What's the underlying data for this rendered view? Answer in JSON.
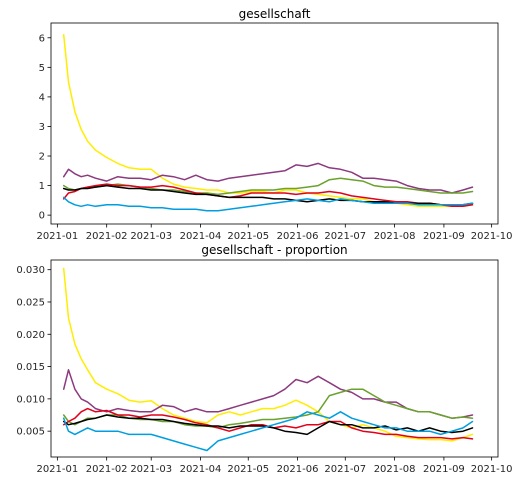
{
  "chart_data": [
    {
      "type": "line",
      "title": "gesellschaft",
      "xlabel": "",
      "ylabel": "",
      "xlim": [
        "2020-12-28",
        "2021-10-05"
      ],
      "ylim": [
        -0.3,
        6.5
      ],
      "xticks": [
        "2021-01",
        "2021-02",
        "2021-03",
        "2021-04",
        "2021-05",
        "2021-06",
        "2021-07",
        "2021-08",
        "2021-09",
        "2021-10"
      ],
      "yticks": [
        "0",
        "1",
        "2",
        "3",
        "4",
        "5",
        "6"
      ],
      "x": [
        "2021-01-05",
        "2021-01-08",
        "2021-01-12",
        "2021-01-16",
        "2021-01-20",
        "2021-01-25",
        "2021-02-01",
        "2021-02-08",
        "2021-02-15",
        "2021-02-22",
        "2021-03-01",
        "2021-03-08",
        "2021-03-15",
        "2021-03-22",
        "2021-03-29",
        "2021-04-05",
        "2021-04-12",
        "2021-04-19",
        "2021-04-26",
        "2021-05-03",
        "2021-05-10",
        "2021-05-17",
        "2021-05-24",
        "2021-05-31",
        "2021-06-07",
        "2021-06-14",
        "2021-06-21",
        "2021-06-28",
        "2021-07-05",
        "2021-07-12",
        "2021-07-19",
        "2021-07-26",
        "2021-08-02",
        "2021-08-09",
        "2021-08-16",
        "2021-08-23",
        "2021-08-30",
        "2021-09-06",
        "2021-09-13",
        "2021-09-19"
      ],
      "grid": false,
      "series": [
        {
          "color": "#ffed00",
          "values": [
            6.1,
            4.5,
            3.5,
            2.9,
            2.5,
            2.2,
            1.95,
            1.75,
            1.6,
            1.55,
            1.55,
            1.25,
            1.05,
            0.95,
            0.9,
            0.85,
            0.85,
            0.75,
            0.75,
            0.8,
            0.8,
            0.75,
            0.85,
            0.85,
            0.75,
            0.7,
            0.65,
            0.6,
            0.55,
            0.55,
            0.45,
            0.45,
            0.4,
            0.35,
            0.3,
            0.3,
            0.3,
            0.3,
            0.3,
            0.35
          ]
        },
        {
          "color": "#8c3a7e",
          "values": [
            1.3,
            1.55,
            1.4,
            1.3,
            1.35,
            1.25,
            1.15,
            1.3,
            1.25,
            1.25,
            1.2,
            1.35,
            1.3,
            1.2,
            1.35,
            1.2,
            1.15,
            1.25,
            1.3,
            1.35,
            1.4,
            1.45,
            1.5,
            1.7,
            1.65,
            1.75,
            1.6,
            1.55,
            1.45,
            1.25,
            1.25,
            1.2,
            1.15,
            1.0,
            0.9,
            0.85,
            0.85,
            0.75,
            0.85,
            0.95
          ]
        },
        {
          "color": "#6aa22d",
          "values": [
            1.0,
            0.9,
            0.85,
            0.9,
            0.95,
            0.95,
            1.0,
            1.05,
            1.0,
            0.95,
            0.9,
            0.85,
            0.85,
            0.8,
            0.75,
            0.75,
            0.7,
            0.75,
            0.8,
            0.85,
            0.85,
            0.85,
            0.9,
            0.9,
            0.95,
            1.0,
            1.2,
            1.25,
            1.2,
            1.15,
            1.0,
            0.95,
            0.95,
            0.9,
            0.85,
            0.8,
            0.75,
            0.75,
            0.75,
            0.8
          ]
        },
        {
          "color": "#e3001b",
          "values": [
            0.55,
            0.75,
            0.8,
            0.9,
            0.95,
            1.0,
            1.05,
            1.0,
            1.0,
            0.95,
            0.95,
            1.0,
            0.95,
            0.85,
            0.75,
            0.7,
            0.65,
            0.6,
            0.65,
            0.75,
            0.75,
            0.75,
            0.75,
            0.7,
            0.75,
            0.75,
            0.8,
            0.75,
            0.65,
            0.6,
            0.55,
            0.5,
            0.45,
            0.45,
            0.4,
            0.4,
            0.35,
            0.3,
            0.3,
            0.35
          ]
        },
        {
          "color": "#000000",
          "values": [
            0.9,
            0.85,
            0.85,
            0.9,
            0.9,
            0.95,
            1.0,
            0.95,
            0.9,
            0.9,
            0.85,
            0.85,
            0.8,
            0.75,
            0.7,
            0.7,
            0.65,
            0.6,
            0.6,
            0.6,
            0.6,
            0.55,
            0.55,
            0.5,
            0.45,
            0.5,
            0.55,
            0.5,
            0.5,
            0.45,
            0.45,
            0.45,
            0.4,
            0.4,
            0.4,
            0.4,
            0.35,
            0.35,
            0.35,
            0.4
          ]
        },
        {
          "color": "#009ee0",
          "values": [
            0.6,
            0.45,
            0.35,
            0.3,
            0.35,
            0.3,
            0.35,
            0.35,
            0.3,
            0.3,
            0.25,
            0.25,
            0.2,
            0.2,
            0.2,
            0.15,
            0.15,
            0.2,
            0.25,
            0.3,
            0.35,
            0.4,
            0.45,
            0.5,
            0.55,
            0.5,
            0.45,
            0.55,
            0.5,
            0.45,
            0.4,
            0.4,
            0.4,
            0.4,
            0.35,
            0.35,
            0.35,
            0.35,
            0.35,
            0.4
          ]
        }
      ]
    },
    {
      "type": "line",
      "title": "gesellschaft - proportion",
      "xlabel": "",
      "ylabel": "",
      "xlim": [
        "2020-12-28",
        "2021-10-05"
      ],
      "ylim": [
        0.001,
        0.0315
      ],
      "xticks": [
        "2021-01",
        "2021-02",
        "2021-03",
        "2021-04",
        "2021-05",
        "2021-06",
        "2021-07",
        "2021-08",
        "2021-09",
        "2021-10"
      ],
      "yticks": [
        "0.005",
        "0.010",
        "0.015",
        "0.020",
        "0.025",
        "0.030"
      ],
      "x": [
        "2021-01-05",
        "2021-01-08",
        "2021-01-12",
        "2021-01-16",
        "2021-01-20",
        "2021-01-25",
        "2021-02-01",
        "2021-02-08",
        "2021-02-15",
        "2021-02-22",
        "2021-03-01",
        "2021-03-08",
        "2021-03-15",
        "2021-03-22",
        "2021-03-29",
        "2021-04-05",
        "2021-04-12",
        "2021-04-19",
        "2021-04-26",
        "2021-05-03",
        "2021-05-10",
        "2021-05-17",
        "2021-05-24",
        "2021-05-31",
        "2021-06-07",
        "2021-06-14",
        "2021-06-21",
        "2021-06-28",
        "2021-07-05",
        "2021-07-12",
        "2021-07-19",
        "2021-07-26",
        "2021-08-02",
        "2021-08-09",
        "2021-08-16",
        "2021-08-23",
        "2021-08-30",
        "2021-09-06",
        "2021-09-13",
        "2021-09-19"
      ],
      "grid": false,
      "series": [
        {
          "color": "#ffed00",
          "values": [
            0.0302,
            0.0225,
            0.0185,
            0.0162,
            0.0145,
            0.0125,
            0.0115,
            0.0108,
            0.0098,
            0.0095,
            0.0097,
            0.0085,
            0.0075,
            0.007,
            0.0065,
            0.0063,
            0.0075,
            0.008,
            0.0075,
            0.008,
            0.0085,
            0.0085,
            0.009,
            0.0098,
            0.009,
            0.008,
            0.0065,
            0.006,
            0.0055,
            0.006,
            0.0055,
            0.005,
            0.0042,
            0.004,
            0.0038,
            0.0037,
            0.0037,
            0.0035,
            0.004,
            0.0045
          ]
        },
        {
          "color": "#8c3a7e",
          "values": [
            0.0115,
            0.0145,
            0.0115,
            0.01,
            0.0095,
            0.0085,
            0.008,
            0.0085,
            0.0082,
            0.008,
            0.008,
            0.009,
            0.0088,
            0.008,
            0.0085,
            0.008,
            0.008,
            0.0085,
            0.009,
            0.0095,
            0.01,
            0.0105,
            0.0115,
            0.013,
            0.0125,
            0.0135,
            0.0125,
            0.0115,
            0.011,
            0.01,
            0.01,
            0.0095,
            0.0095,
            0.0085,
            0.008,
            0.008,
            0.0075,
            0.007,
            0.0072,
            0.0075
          ]
        },
        {
          "color": "#6aa22d",
          "values": [
            0.0075,
            0.0065,
            0.006,
            0.0065,
            0.007,
            0.007,
            0.0075,
            0.0075,
            0.007,
            0.0068,
            0.0068,
            0.0065,
            0.0065,
            0.006,
            0.0058,
            0.0058,
            0.0055,
            0.006,
            0.0062,
            0.0065,
            0.0068,
            0.0068,
            0.007,
            0.0072,
            0.0075,
            0.008,
            0.0105,
            0.011,
            0.0115,
            0.0115,
            0.0105,
            0.0095,
            0.009,
            0.0085,
            0.008,
            0.008,
            0.0075,
            0.007,
            0.0072,
            0.007
          ]
        },
        {
          "color": "#e3001b",
          "values": [
            0.006,
            0.0065,
            0.007,
            0.008,
            0.0085,
            0.008,
            0.0082,
            0.0075,
            0.0075,
            0.0072,
            0.0075,
            0.0075,
            0.0072,
            0.0068,
            0.0063,
            0.006,
            0.0055,
            0.005,
            0.0055,
            0.006,
            0.006,
            0.0055,
            0.0058,
            0.0055,
            0.006,
            0.006,
            0.0065,
            0.0065,
            0.0055,
            0.005,
            0.0048,
            0.0045,
            0.0045,
            0.0042,
            0.004,
            0.004,
            0.004,
            0.0038,
            0.004,
            0.0038
          ]
        },
        {
          "color": "#000000",
          "values": [
            0.0065,
            0.006,
            0.0062,
            0.0065,
            0.0068,
            0.007,
            0.0075,
            0.0072,
            0.007,
            0.007,
            0.0068,
            0.0068,
            0.0065,
            0.0062,
            0.006,
            0.0058,
            0.0058,
            0.0055,
            0.0058,
            0.0058,
            0.0058,
            0.0055,
            0.005,
            0.0048,
            0.0045,
            0.0055,
            0.0065,
            0.006,
            0.006,
            0.0055,
            0.0055,
            0.0058,
            0.0052,
            0.0055,
            0.005,
            0.0055,
            0.005,
            0.0048,
            0.005,
            0.0055
          ]
        },
        {
          "color": "#009ee0",
          "values": [
            0.007,
            0.005,
            0.0045,
            0.005,
            0.0055,
            0.005,
            0.005,
            0.005,
            0.0045,
            0.0045,
            0.0045,
            0.004,
            0.0035,
            0.003,
            0.0025,
            0.002,
            0.0035,
            0.004,
            0.0045,
            0.005,
            0.0055,
            0.006,
            0.0065,
            0.007,
            0.008,
            0.0075,
            0.007,
            0.008,
            0.007,
            0.0065,
            0.006,
            0.0055,
            0.0055,
            0.005,
            0.005,
            0.005,
            0.0045,
            0.005,
            0.0055,
            0.0065
          ]
        }
      ]
    }
  ]
}
